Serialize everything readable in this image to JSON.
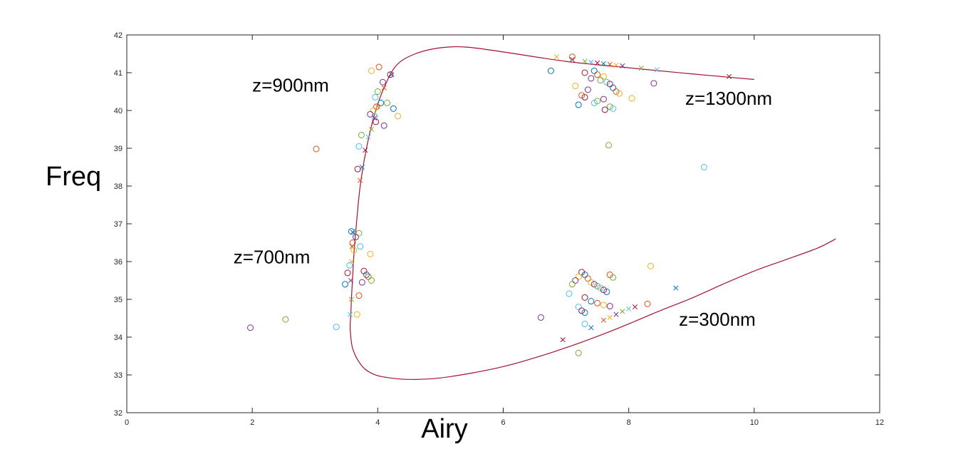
{
  "chart_data": {
    "type": "scatter",
    "title": "",
    "xlabel": "Airy",
    "ylabel": "Freq",
    "xlim": [
      0,
      12
    ],
    "ylim": [
      32,
      42
    ],
    "xticks": [
      0,
      2,
      4,
      6,
      8,
      10,
      12
    ],
    "yticks": [
      32,
      33,
      34,
      35,
      36,
      37,
      38,
      39,
      40,
      41,
      42
    ],
    "grid": false,
    "legend": "none",
    "curve_color": "#A2142F",
    "marker_colors": [
      "#0072BD",
      "#D95319",
      "#EDB120",
      "#7E2F8E",
      "#77AC30",
      "#4DBEEE",
      "#A2142F"
    ],
    "annotations": [
      {
        "text": "z=900nm",
        "x": 2.0,
        "y": 40.5
      },
      {
        "text": "z=1300nm",
        "x": 8.9,
        "y": 40.15
      },
      {
        "text": "z=700nm",
        "x": 1.7,
        "y": 35.95
      },
      {
        "text": "z=300nm",
        "x": 8.8,
        "y": 34.3
      }
    ],
    "fit_curve": {
      "name": "",
      "x": [
        10.0,
        9.0,
        8.0,
        7.0,
        6.0,
        5.4,
        5.0,
        4.6,
        4.3,
        4.1,
        3.95,
        3.82,
        3.72,
        3.66,
        3.62,
        3.6,
        3.58,
        3.57,
        3.56,
        3.57,
        3.6,
        3.68,
        3.8,
        4.0,
        4.3,
        4.6,
        5.0,
        5.5,
        6.0,
        6.5,
        7.0,
        7.5,
        8.0,
        8.5,
        9.0,
        9.5,
        10.0,
        10.5,
        11.0,
        11.3
      ],
      "y": [
        40.82,
        40.97,
        41.13,
        41.3,
        41.55,
        41.68,
        41.66,
        41.5,
        41.2,
        40.6,
        39.9,
        39.0,
        38.0,
        37.0,
        36.2,
        35.6,
        35.0,
        34.6,
        34.3,
        34.0,
        33.7,
        33.4,
        33.15,
        32.98,
        32.9,
        32.88,
        32.92,
        33.05,
        33.22,
        33.45,
        33.72,
        34.02,
        34.35,
        34.7,
        35.03,
        35.4,
        35.75,
        36.05,
        36.35,
        36.6
      ]
    },
    "series": [
      {
        "name": "",
        "marker": "x",
        "color": "#A2142F",
        "x": [
          4.22,
          4.1,
          4.0,
          3.95,
          3.9,
          3.85,
          3.8,
          3.75,
          3.72,
          6.85,
          7.1,
          7.3,
          7.4,
          7.5,
          7.6,
          7.7,
          7.8,
          7.9,
          8.2,
          8.45,
          9.6,
          3.6,
          3.59,
          3.58,
          3.57,
          3.58,
          3.56,
          6.95,
          7.4,
          7.6,
          7.7,
          7.8,
          7.9,
          8.0,
          8.1,
          8.75
        ],
        "y": [
          40.95,
          40.6,
          40.1,
          39.8,
          39.5,
          39.3,
          38.95,
          38.5,
          38.15,
          41.42,
          41.35,
          41.3,
          41.28,
          41.26,
          41.24,
          41.22,
          41.2,
          41.18,
          41.12,
          41.08,
          40.9,
          36.78,
          36.4,
          36.0,
          35.5,
          35.0,
          34.6,
          33.93,
          34.25,
          34.45,
          34.52,
          34.6,
          34.68,
          34.75,
          34.8,
          35.3
        ]
      },
      {
        "name": "",
        "marker": "o",
        "color": "#7E2F8E",
        "x": [
          4.02,
          3.9,
          4.08,
          4.0,
          3.96,
          4.2,
          4.05,
          3.98,
          3.93,
          3.88,
          4.15,
          3.95,
          3.97,
          4.25,
          3.02,
          4.32,
          4.1,
          3.74,
          3.7,
          3.68,
          3.58,
          3.6,
          3.62,
          3.65,
          3.7,
          3.72,
          3.78,
          3.82,
          3.85,
          3.88,
          3.75,
          3.9,
          3.55,
          3.52,
          3.48,
          3.7,
          3.67,
          1.97,
          2.53,
          3.34,
          7.3,
          7.45,
          7.5,
          7.6,
          7.4,
          7.55,
          7.65,
          7.7,
          7.75,
          7.8,
          7.85,
          7.6,
          7.5,
          7.45,
          7.3,
          7.2,
          7.25,
          7.15,
          7.35,
          7.7,
          7.75,
          7.62,
          6.76,
          7.1,
          8.05,
          8.4,
          7.68,
          9.2,
          7.25,
          7.3,
          7.35,
          7.4,
          7.45,
          7.5,
          7.55,
          7.6,
          7.65,
          7.7,
          7.2,
          7.15,
          7.1,
          7.05,
          7.3,
          7.4,
          7.5,
          7.6,
          7.7,
          7.75,
          7.2,
          7.25,
          7.3,
          8.3,
          8.35,
          6.6,
          7.2,
          7.3
        ],
        "y": [
          41.15,
          41.05,
          40.75,
          40.5,
          40.35,
          40.95,
          40.2,
          40.1,
          40.0,
          39.9,
          40.2,
          39.85,
          39.7,
          40.05,
          38.98,
          39.85,
          39.6,
          39.35,
          39.05,
          38.45,
          36.8,
          36.5,
          36.3,
          36.65,
          36.75,
          36.4,
          35.75,
          35.65,
          35.6,
          36.2,
          35.45,
          35.5,
          35.9,
          35.7,
          35.4,
          35.1,
          34.6,
          34.25,
          34.47,
          34.27,
          41.0,
          41.05,
          40.95,
          40.9,
          40.85,
          40.8,
          40.75,
          40.7,
          40.6,
          40.5,
          40.45,
          40.3,
          40.25,
          40.2,
          40.35,
          40.15,
          40.4,
          40.65,
          40.55,
          40.1,
          40.05,
          40.02,
          41.05,
          41.42,
          40.32,
          40.72,
          39.08,
          38.5,
          35.72,
          35.65,
          35.55,
          35.45,
          35.4,
          35.35,
          35.3,
          35.25,
          35.2,
          35.65,
          35.6,
          35.5,
          35.4,
          35.15,
          35.05,
          34.95,
          34.9,
          34.85,
          34.82,
          35.58,
          34.8,
          34.7,
          34.65,
          34.88,
          35.88,
          34.52,
          33.58,
          34.35
        ]
      }
    ]
  }
}
